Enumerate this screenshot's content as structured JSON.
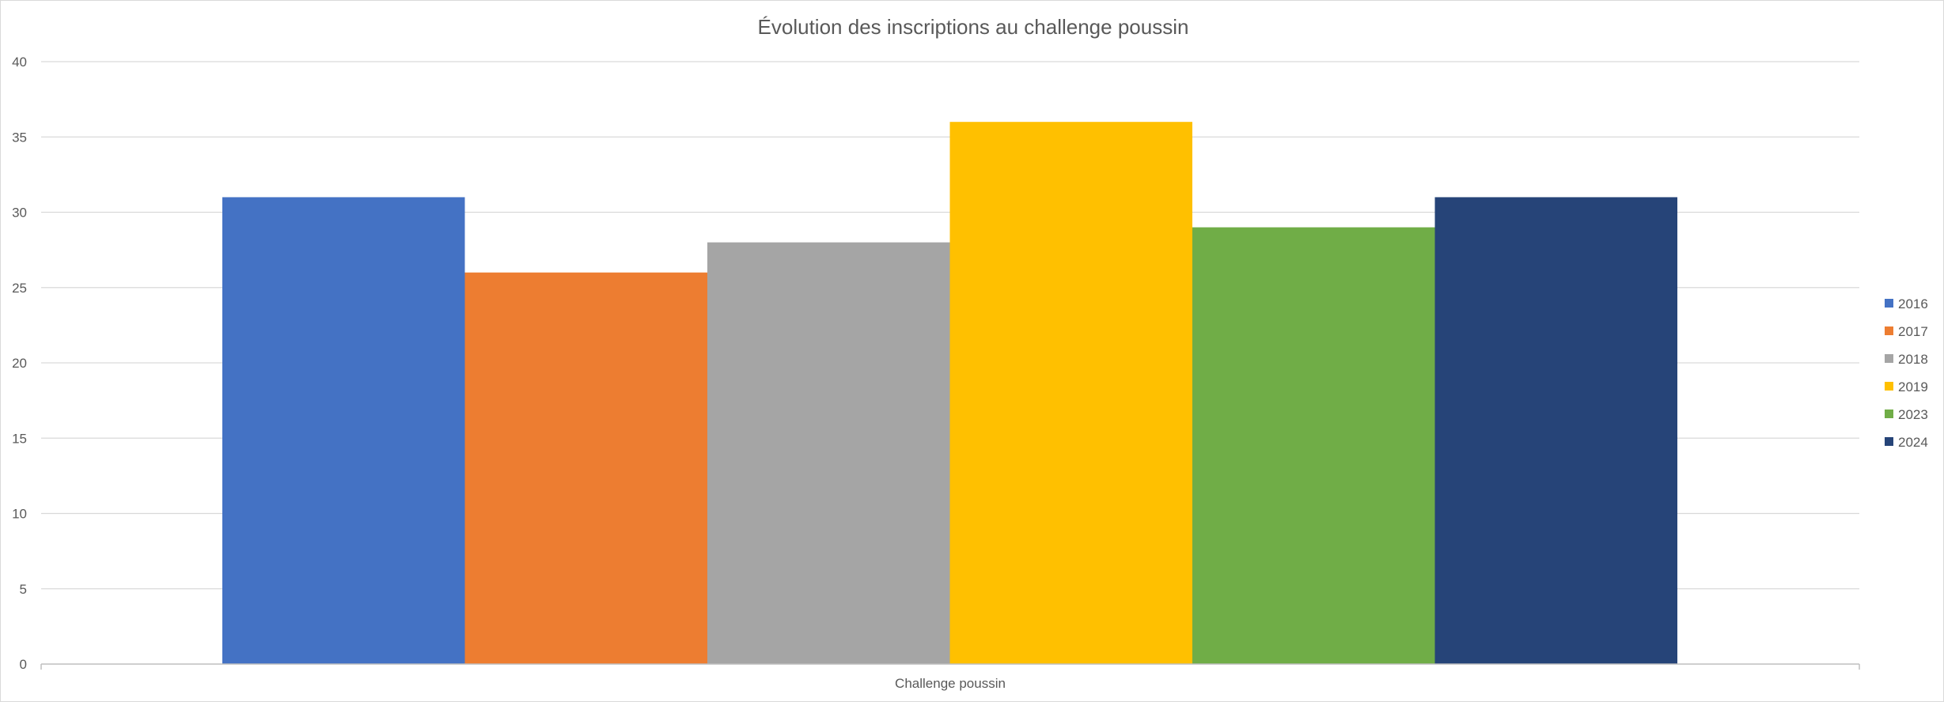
{
  "chart_data": {
    "type": "bar",
    "title": "Évolution des inscriptions au challenge poussin",
    "categories": [
      "Challenge poussin"
    ],
    "series": [
      {
        "name": "2016",
        "values": [
          31
        ],
        "color": "#4472C4"
      },
      {
        "name": "2017",
        "values": [
          26
        ],
        "color": "#ED7D31"
      },
      {
        "name": "2018",
        "values": [
          28
        ],
        "color": "#A5A5A5"
      },
      {
        "name": "2019",
        "values": [
          36
        ],
        "color": "#FFC000"
      },
      {
        "name": "2023",
        "values": [
          29
        ],
        "color": "#70AD47"
      },
      {
        "name": "2024",
        "values": [
          31
        ],
        "color": "#264478"
      }
    ],
    "ylim": [
      0,
      40
    ],
    "yticks": [
      "0",
      "5",
      "10",
      "15",
      "20",
      "25",
      "30",
      "35",
      "40"
    ],
    "grid": true,
    "legend_position": "right",
    "xlabel": "",
    "ylabel": ""
  }
}
